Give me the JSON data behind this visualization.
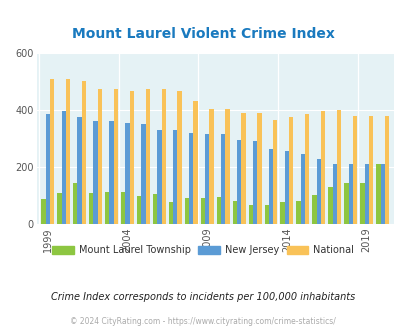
{
  "title": "Mount Laurel Violent Crime Index",
  "title_color": "#1a7abf",
  "years": [
    1999,
    2000,
    2001,
    2002,
    2003,
    2004,
    2005,
    2006,
    2007,
    2008,
    2009,
    2010,
    2011,
    2012,
    2013,
    2014,
    2015,
    2016,
    2017,
    2018,
    2019,
    2020
  ],
  "mount_laurel": [
    90,
    110,
    145,
    110,
    115,
    115,
    100,
    107,
    80,
    93,
    93,
    95,
    82,
    68,
    68,
    80,
    82,
    102,
    130,
    145,
    145,
    210
  ],
  "new_jersey": [
    385,
    395,
    375,
    360,
    360,
    355,
    350,
    330,
    330,
    320,
    315,
    315,
    295,
    290,
    265,
    258,
    245,
    230,
    210,
    210,
    210,
    210
  ],
  "national": [
    510,
    510,
    500,
    475,
    475,
    465,
    475,
    475,
    465,
    430,
    405,
    405,
    390,
    390,
    365,
    375,
    385,
    395,
    400,
    380,
    380,
    380
  ],
  "bar_width": 0.27,
  "ylim": [
    0,
    600
  ],
  "yticks": [
    0,
    200,
    400,
    600
  ],
  "bg_color": "#e5f2f5",
  "color_ml": "#8dc641",
  "color_nj": "#5b9bd5",
  "color_nat": "#f9c258",
  "subtitle": "Crime Index corresponds to incidents per 100,000 inhabitants",
  "footer": "© 2024 CityRating.com - https://www.cityrating.com/crime-statistics/",
  "subtitle_color": "#222222",
  "footer_color": "#aaaaaa",
  "legend_labels": [
    "Mount Laurel Township",
    "New Jersey",
    "National"
  ],
  "xlabel_years": [
    1999,
    2004,
    2009,
    2014,
    2019
  ]
}
